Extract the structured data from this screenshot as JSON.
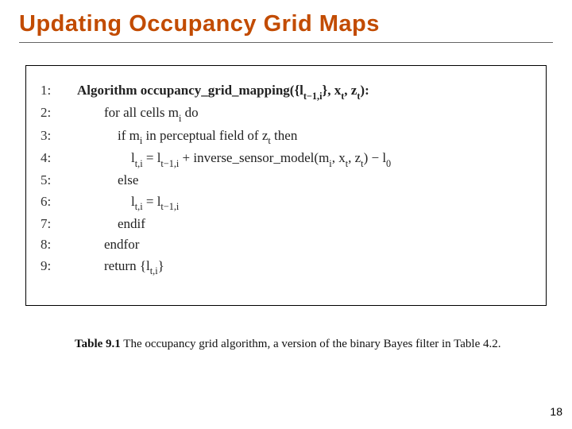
{
  "title": "Updating Occupancy Grid Maps",
  "title_color": "#c24b00",
  "title_fontsize": 29,
  "box_border_color": "#000000",
  "background_color": "#ffffff",
  "algorithm": {
    "name_prefix": "Algorithm ",
    "name": "occupancy_grid_mapping",
    "args_open": "({",
    "arg1": "l",
    "arg1_sub": "t−1,i",
    "args_mid": "}, x",
    "xt_sub": "t",
    "args_mid2": ", z",
    "zt_sub": "t",
    "args_close": "):",
    "lines": [
      {
        "n": "1:",
        "indent": 0,
        "bold": true
      },
      {
        "n": "2:",
        "indent": 1,
        "text": "for all cells m",
        "sub": "i",
        "tail": " do"
      },
      {
        "n": "3:",
        "indent": 2,
        "text": "if m",
        "sub": "i",
        "mid": " in perceptual field of z",
        "sub2": "t",
        "tail": " then"
      },
      {
        "n": "4:",
        "indent": 3
      },
      {
        "n": "5:",
        "indent": 2,
        "text": "else"
      },
      {
        "n": "6:",
        "indent": 3
      },
      {
        "n": "7:",
        "indent": 2,
        "text": "endif"
      },
      {
        "n": "8:",
        "indent": 1,
        "text": "endfor"
      },
      {
        "n": "9:",
        "indent": 1,
        "text_ret": "return {",
        "ret_var": "l",
        "ret_sub": "t,i",
        "ret_close": "}"
      }
    ],
    "line4": {
      "lhs_var": "l",
      "lhs_sub": "t,i",
      "eq": " = ",
      "rhs1_var": "l",
      "rhs1_sub": "t−1,i",
      "plus": " + inverse_sensor_model(m",
      "mi_sub": "i",
      "mid": ", x",
      "xt_sub": "t",
      "mid2": ", z",
      "zt_sub": "t",
      "close": ") − ",
      "l0_var": "l",
      "l0_sub": "0"
    },
    "line6": {
      "lhs_var": "l",
      "lhs_sub": "t,i",
      "eq": " = ",
      "rhs_var": "l",
      "rhs_sub": "t−1,i"
    }
  },
  "caption": {
    "label": "Table 9.1",
    "text": "   The occupancy grid algorithm, a version of the binary Bayes filter in Table 4.2."
  },
  "page_number": "18",
  "body_fontsize": 17,
  "caption_fontsize": 15
}
